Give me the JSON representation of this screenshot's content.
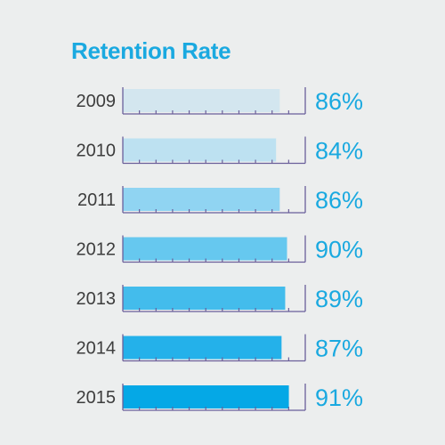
{
  "chart_data": {
    "type": "bar",
    "orientation": "horizontal",
    "title": "Retention Rate",
    "categories": [
      "2009",
      "2010",
      "2011",
      "2012",
      "2013",
      "2014",
      "2015"
    ],
    "values": [
      86,
      84,
      86,
      90,
      89,
      87,
      91
    ],
    "value_labels": [
      "86%",
      "84%",
      "86%",
      "90%",
      "89%",
      "87%",
      "91%"
    ],
    "xlim": [
      0,
      100
    ],
    "unit": "%",
    "grid": false,
    "legend": "none",
    "colors": [
      "#d3e6ef",
      "#bde1f1",
      "#90d4f2",
      "#66c8ef",
      "#43bcec",
      "#24b1ea",
      "#05a8e6"
    ],
    "accent": "#1aa9e0",
    "frame_color": "#6a5f9a"
  }
}
